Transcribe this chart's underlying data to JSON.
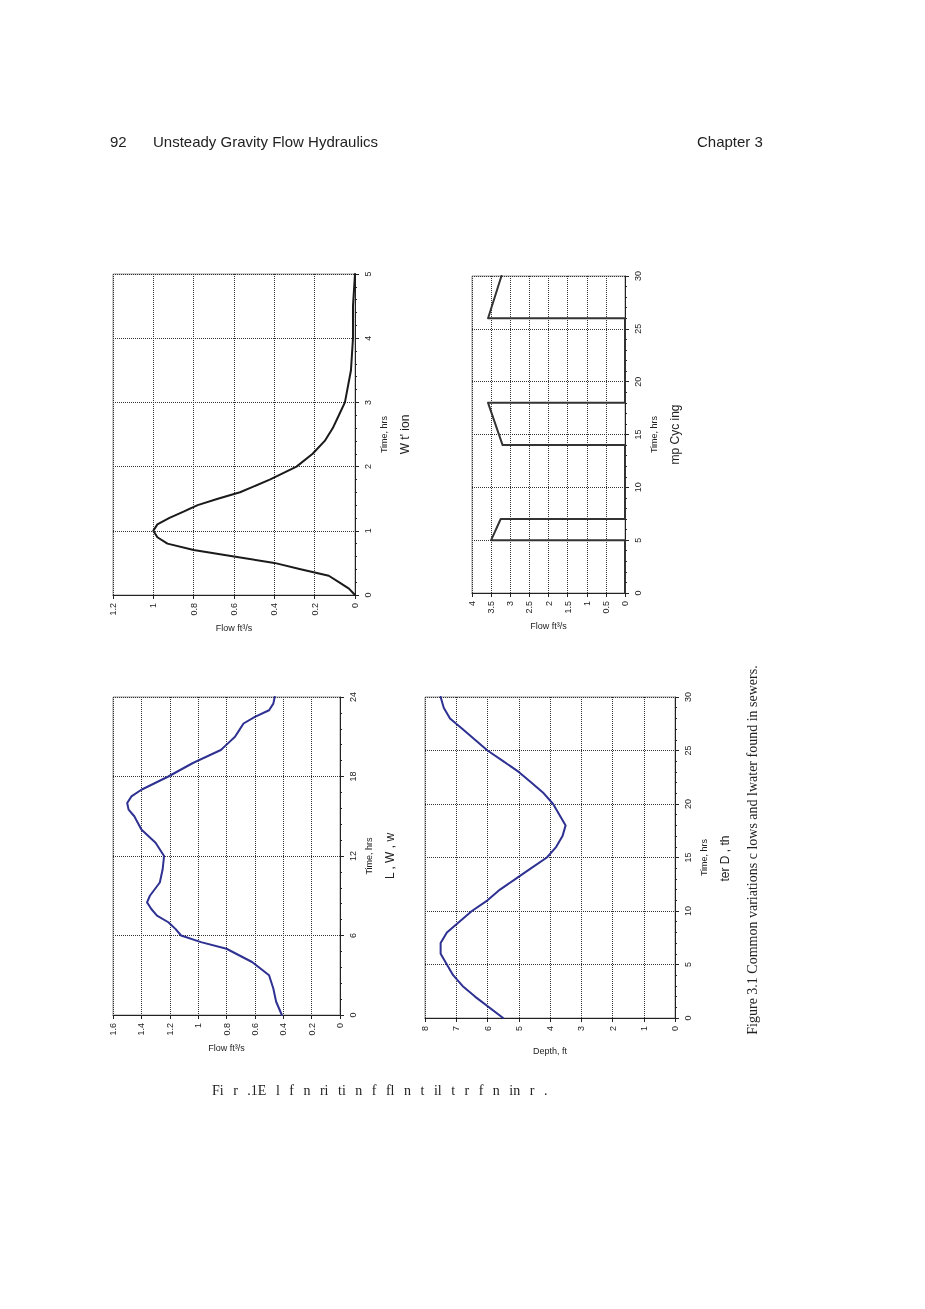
{
  "chart_data": [
    {
      "type": "line",
      "xlabel": "Flow ft³/s",
      "ylabel": "Time, hrs",
      "xlim": [
        1.6,
        0
      ],
      "xticks": [
        0,
        0.2,
        0.4,
        0.6,
        0.8,
        1,
        1.2,
        1.4,
        1.6
      ],
      "ylim": [
        0,
        24
      ],
      "yticks": [
        0,
        6,
        12,
        18,
        24
      ],
      "grid": true,
      "marker": "none",
      "line_style": "solid",
      "annotations": [
        "L , W , w",
        "92",
        "Unsteady Gravity Flow Hydraulics",
        "Chapter 3"
      ],
      "series": [
        {
          "color": "#2e3192",
          "x": [
            0.41,
            0.45,
            0.47,
            0.5,
            0.62,
            0.8,
            0.98,
            1.12,
            1.16,
            1.21,
            1.29,
            1.33,
            1.36,
            1.34,
            1.27,
            1.25,
            1.24,
            1.3,
            1.4,
            1.45,
            1.49,
            1.5,
            1.47,
            1.4,
            1.21,
            1.04,
            0.84,
            0.79,
            0.74,
            0.71,
            0.68,
            0.6,
            0.5,
            0.47,
            0.46
          ],
          "values": [
            0,
            1,
            2,
            3,
            4,
            5,
            5.5,
            6,
            6.5,
            7,
            7.5,
            8,
            8.5,
            9,
            10,
            11,
            12,
            13,
            14,
            15,
            15.5,
            16,
            16.5,
            17,
            18,
            19,
            20,
            20.5,
            21,
            21.5,
            22,
            22.5,
            23,
            23.5,
            24
          ]
        }
      ]
    },
    {
      "type": "line",
      "xlabel": "Flow ft³/s",
      "ylabel": "Time, hrs",
      "xlim": [
        1.2,
        0
      ],
      "xticks": [
        0,
        0.2,
        0.4,
        0.6,
        0.8,
        1,
        1.2
      ],
      "ylim": [
        0,
        5
      ],
      "yticks": [
        0,
        1,
        2,
        3,
        4,
        5
      ],
      "grid": true,
      "marker": "none",
      "line_style": "solid",
      "annotations": [
        "W t' ion"
      ],
      "series": [
        {
          "color": "#1a1a1a",
          "x": [
            0,
            0.03,
            0.08,
            0.13,
            0.27,
            0.4,
            0.6,
            0.8,
            0.93,
            0.98,
            1,
            0.98,
            0.92,
            0.85,
            0.78,
            0.68,
            0.57,
            0.42,
            0.29,
            0.21,
            0.15,
            0.11,
            0.08,
            0.05,
            0.02,
            0.01,
            0.01,
            0
          ],
          "values": [
            0,
            0.1,
            0.2,
            0.3,
            0.4,
            0.5,
            0.6,
            0.7,
            0.8,
            0.9,
            1,
            1.1,
            1.2,
            1.3,
            1.4,
            1.5,
            1.6,
            1.8,
            2,
            2.2,
            2.4,
            2.6,
            2.8,
            3,
            3.5,
            4,
            4.5,
            5
          ]
        }
      ]
    },
    {
      "type": "line",
      "xlabel": "Depth, ft",
      "ylabel": "Time, hrs",
      "xlim": [
        8,
        0
      ],
      "xticks": [
        0,
        1,
        2,
        3,
        4,
        5,
        6,
        7,
        8
      ],
      "ylim": [
        0,
        30
      ],
      "yticks": [
        0,
        5,
        10,
        15,
        20,
        25,
        30
      ],
      "grid": true,
      "marker": "none",
      "line_style": "solid",
      "annotations": [
        "ter D , th"
      ],
      "series": [
        {
          "color": "#2e3192",
          "x": [
            5.5,
            6.4,
            6.8,
            7.1,
            7.3,
            7.5,
            7.5,
            7.3,
            6.9,
            6.5,
            6,
            5.6,
            5.1,
            4.6,
            4.1,
            3.8,
            3.6,
            3.5,
            3.7,
            3.9,
            4.2,
            4.6,
            5,
            5.5,
            6,
            6.4,
            6.8,
            7.2,
            7.4,
            7.5
          ],
          "values": [
            0,
            2,
            3,
            4,
            5,
            6,
            7,
            8,
            9,
            10,
            11,
            12,
            13,
            14,
            15,
            16,
            17,
            18,
            19,
            20,
            21,
            22,
            23,
            24,
            25,
            26,
            27,
            28,
            29,
            30
          ]
        }
      ]
    },
    {
      "type": "line",
      "xlabel": "Flow ft³/s",
      "ylabel": "Time, hrs",
      "xlim": [
        4,
        0
      ],
      "xticks": [
        0,
        0.5,
        1,
        1.5,
        2,
        2.5,
        3,
        3.5,
        4
      ],
      "ylim": [
        0,
        30
      ],
      "yticks": [
        0,
        5,
        10,
        15,
        20,
        25,
        30
      ],
      "grid": true,
      "marker": "none",
      "line_style": "solid",
      "annotations": [
        "mp Cyc ing",
        "Figure 3.1 Common variations c lows and lwater found in sewers.",
        "Fi r .1E l f n ri ti n f fl n t il t r f n in r ."
      ],
      "series": [
        {
          "color": "#333333",
          "x": [
            0,
            0,
            3.5,
            3.25,
            0,
            0,
            3.2,
            3.58,
            0,
            0,
            3.58,
            3.23
          ],
          "values": [
            0,
            5,
            5,
            7,
            7,
            14,
            14,
            18,
            18,
            26,
            26,
            30
          ]
        }
      ]
    }
  ]
}
